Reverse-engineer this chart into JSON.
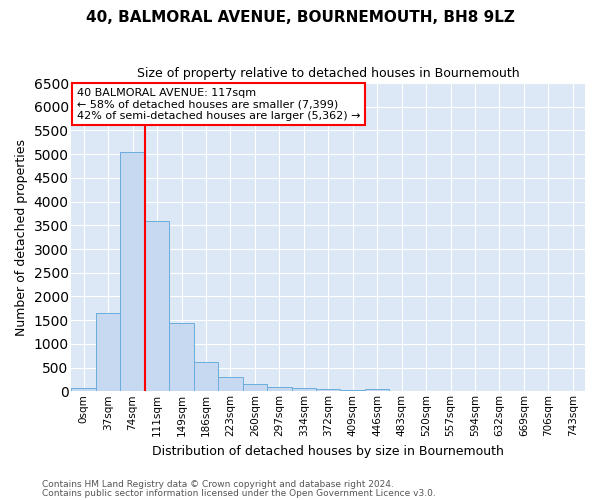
{
  "title": "40, BALMORAL AVENUE, BOURNEMOUTH, BH8 9LZ",
  "subtitle": "Size of property relative to detached houses in Bournemouth",
  "xlabel": "Distribution of detached houses by size in Bournemouth",
  "ylabel": "Number of detached properties",
  "categories": [
    "0sqm",
    "37sqm",
    "74sqm",
    "111sqm",
    "149sqm",
    "186sqm",
    "223sqm",
    "260sqm",
    "297sqm",
    "334sqm",
    "372sqm",
    "409sqm",
    "446sqm",
    "483sqm",
    "520sqm",
    "557sqm",
    "594sqm",
    "632sqm",
    "669sqm",
    "706sqm",
    "743sqm"
  ],
  "bar_heights": [
    75,
    1650,
    5050,
    3600,
    1430,
    610,
    300,
    150,
    100,
    75,
    50,
    25,
    50,
    0,
    0,
    0,
    0,
    0,
    0,
    0,
    0
  ],
  "bar_color": "#c6d9f0",
  "bar_edge_color": "#6aaddc",
  "vline_color": "red",
  "vline_pos": 2.5,
  "ylim_max": 6500,
  "yticks": [
    0,
    500,
    1000,
    1500,
    2000,
    2500,
    3000,
    3500,
    4000,
    4500,
    5000,
    5500,
    6000,
    6500
  ],
  "annotation_title": "40 BALMORAL AVENUE: 117sqm",
  "annotation_line1": "← 58% of detached houses are smaller (7,399)",
  "annotation_line2": "42% of semi-detached houses are larger (5,362) →",
  "annotation_box_color": "red",
  "footer_line1": "Contains HM Land Registry data © Crown copyright and database right 2024.",
  "footer_line2": "Contains public sector information licensed under the Open Government Licence v3.0.",
  "fig_bg_color": "#ffffff",
  "plot_bg_color": "#dce8f5",
  "grid_color": "white",
  "title_fontsize": 11,
  "subtitle_fontsize": 9,
  "xlabel_fontsize": 9,
  "ylabel_fontsize": 9,
  "tick_fontsize": 7.5,
  "annotation_fontsize": 8,
  "footer_fontsize": 6.5
}
